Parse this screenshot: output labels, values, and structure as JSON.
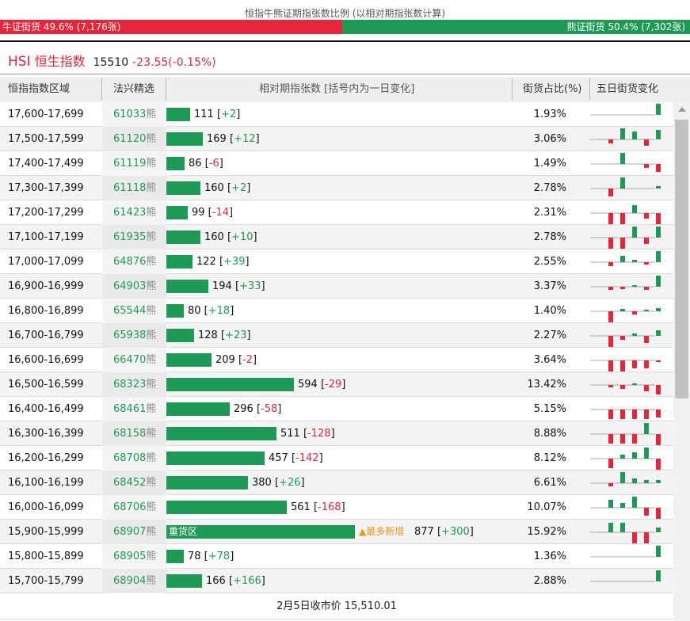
{
  "header": {
    "title": "恒指牛熊证期指张数比例 (以相对期指张数计算)",
    "bull_label": "牛证街货 49.6% (7,176张)",
    "bear_label": "熊证街货 50.4% (7,302张)",
    "bull_fraction": 0.496
  },
  "index": {
    "code": "HSI",
    "name": "恒生指数",
    "price": "15510",
    "change": "-23.55(-0.15%)"
  },
  "table": {
    "columns": [
      "恒指指数区域",
      "法兴精选",
      "相对期指张数 [括号内为一日变化]",
      "街货占比(%)",
      "五日街货变化"
    ],
    "code_suffix": "熊",
    "rows": [
      {
        "range": "17,600-17,699",
        "code": "61033",
        "count": 111,
        "count_text": "111",
        "change": "+2",
        "pct": "1.93%",
        "spark": [
          0,
          0,
          0,
          0,
          14
        ]
      },
      {
        "range": "17,500-17,599",
        "code": "61120",
        "count": 169,
        "count_text": "169",
        "change": "+12",
        "pct": "3.06%",
        "spark": [
          -5,
          14,
          10,
          -8,
          12
        ]
      },
      {
        "range": "17,400-17,499",
        "code": "61119",
        "count": 86,
        "count_text": "86",
        "change": "-6",
        "pct": "1.49%",
        "spark": [
          0,
          14,
          0,
          -5,
          -10
        ]
      },
      {
        "range": "17,300-17,399",
        "code": "61118",
        "count": 160,
        "count_text": "160",
        "change": "+2",
        "pct": "2.78%",
        "spark": [
          -10,
          14,
          0,
          0,
          3
        ]
      },
      {
        "range": "17,200-17,299",
        "code": "61423",
        "count": 99,
        "count_text": "99",
        "change": "-14",
        "pct": "2.31%",
        "spark": [
          -14,
          -14,
          10,
          -7,
          -14
        ]
      },
      {
        "range": "17,100-17,199",
        "code": "61935",
        "count": 160,
        "count_text": "160",
        "change": "+10",
        "pct": "2.78%",
        "spark": [
          -14,
          -14,
          14,
          -8,
          14
        ]
      },
      {
        "range": "17,000-17,099",
        "code": "64876",
        "count": 122,
        "count_text": "122",
        "change": "+39",
        "pct": "2.55%",
        "spark": [
          -5,
          8,
          3,
          -3,
          14
        ]
      },
      {
        "range": "16,900-16,999",
        "code": "64903",
        "count": 194,
        "count_text": "194",
        "change": "+33",
        "pct": "3.37%",
        "spark": [
          -4,
          -3,
          2,
          -4,
          14
        ]
      },
      {
        "range": "16,800-16,899",
        "code": "65544",
        "count": 80,
        "count_text": "80",
        "change": "+18",
        "pct": "1.40%",
        "spark": [
          -14,
          3,
          -4,
          2,
          4
        ]
      },
      {
        "range": "16,700-16,799",
        "code": "65938",
        "count": 128,
        "count_text": "128",
        "change": "+23",
        "pct": "2.27%",
        "spark": [
          -14,
          -5,
          3,
          -9,
          7
        ]
      },
      {
        "range": "16,600-16,699",
        "code": "66470",
        "count": 209,
        "count_text": "209",
        "change": "-2",
        "pct": "3.64%",
        "spark": [
          -14,
          -14,
          -10,
          -10,
          -2
        ]
      },
      {
        "range": "16,500-16,599",
        "code": "68323",
        "count": 594,
        "count_text": "594",
        "change": "-29",
        "pct": "13.42%",
        "spark": [
          -3,
          -5,
          2,
          -8,
          -12
        ]
      },
      {
        "range": "16,400-16,499",
        "code": "68461",
        "count": 296,
        "count_text": "296",
        "change": "-58",
        "pct": "5.15%",
        "spark": [
          -12,
          -12,
          -12,
          -12,
          -10
        ]
      },
      {
        "range": "16,300-16,399",
        "code": "68158",
        "count": 511,
        "count_text": "511",
        "change": "-128",
        "pct": "8.88%",
        "spark": [
          -12,
          -12,
          -12,
          14,
          -14
        ]
      },
      {
        "range": "16,200-16,299",
        "code": "68708",
        "count": 457,
        "count_text": "457",
        "change": "-142",
        "pct": "8.12%",
        "spark": [
          -12,
          5,
          8,
          14,
          -14
        ]
      },
      {
        "range": "16,100-16,199",
        "code": "68452",
        "count": 380,
        "count_text": "380",
        "change": "+26",
        "pct": "6.61%",
        "spark": [
          -4,
          14,
          6,
          4,
          4
        ]
      },
      {
        "range": "16,000-16,099",
        "code": "68706",
        "count": 561,
        "count_text": "561",
        "change": "-168",
        "pct": "10.07%",
        "spark": [
          10,
          6,
          14,
          -10,
          -14
        ]
      },
      {
        "range": "15,900-15,999",
        "code": "68907",
        "count": 877,
        "count_text": "877",
        "change": "+300",
        "pct": "15.92%",
        "label": "重货区",
        "note": "▲最多新增",
        "spark": [
          12,
          12,
          -14,
          -14,
          6
        ]
      },
      {
        "range": "15,800-15,899",
        "code": "68905",
        "count": 78,
        "count_text": "78",
        "change": "+78",
        "pct": "1.36%",
        "spark": [
          0,
          0,
          0,
          0,
          14
        ]
      },
      {
        "range": "15,700-15,799",
        "code": "68904",
        "count": 166,
        "count_text": "166",
        "change": "+166",
        "pct": "2.88%",
        "spark": [
          0,
          0,
          0,
          0,
          14
        ]
      }
    ]
  },
  "footer": {
    "text": "2月5日收市价 15,510.01"
  },
  "colors": {
    "bull": "#e8243a",
    "bear": "#1d9a55",
    "accent_red": "#e0263c",
    "note_orange": "#e8961c"
  }
}
